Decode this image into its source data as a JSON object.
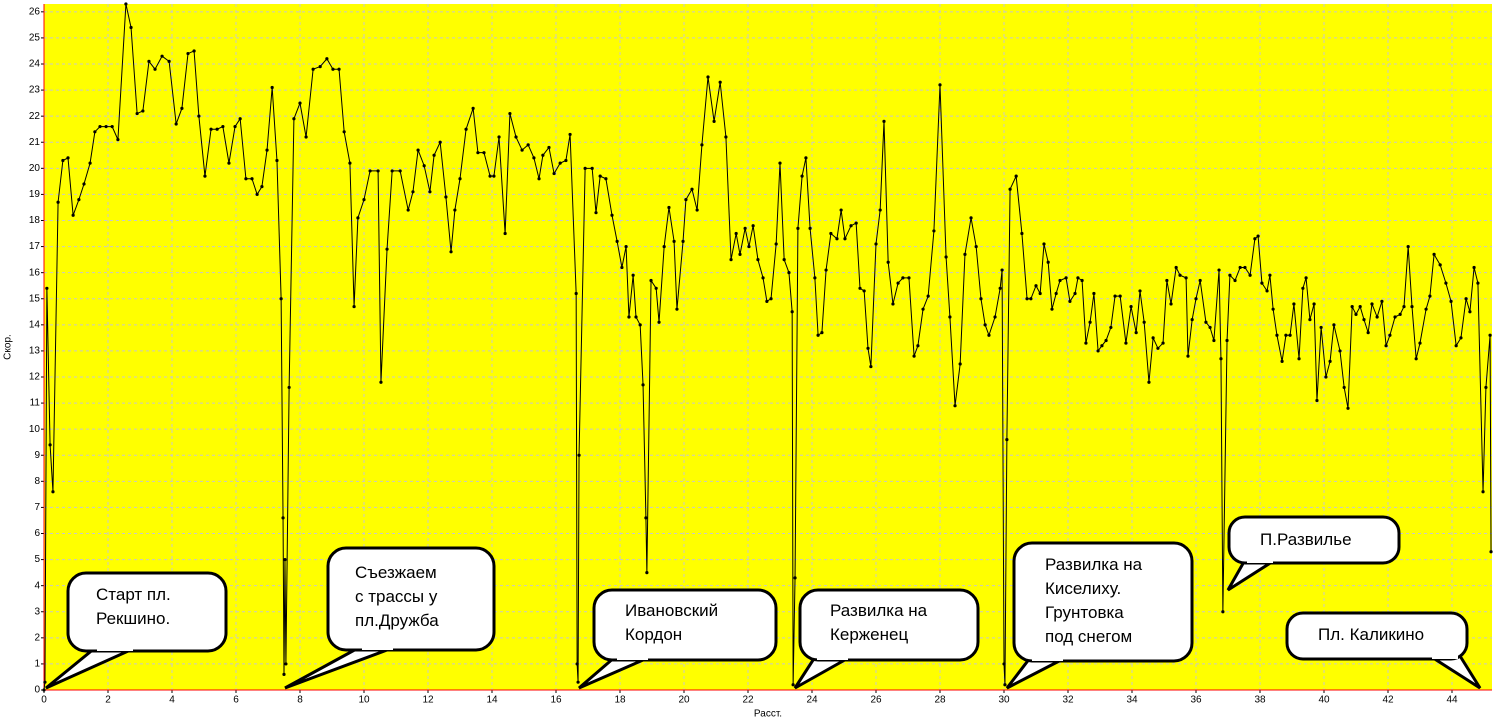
{
  "chart_data": {
    "type": "line",
    "x_label": "Расст.",
    "y_label": "Скор.",
    "color": "#000000",
    "background": "#ffff00",
    "grid": true,
    "xlim": [
      0,
      45.25
    ],
    "ylim": [
      0,
      26.3
    ],
    "xticks": [
      0,
      2,
      4,
      6,
      8,
      10,
      12,
      14,
      16,
      18,
      20,
      22,
      24,
      26,
      28,
      30,
      32,
      34,
      36,
      38,
      40,
      42,
      44
    ],
    "yticks": [
      0,
      1,
      2,
      3,
      4,
      5,
      6,
      7,
      8,
      9,
      10,
      11,
      12,
      13,
      14,
      15,
      16,
      17,
      18,
      19,
      20,
      21,
      22,
      23,
      24,
      25,
      26
    ],
    "series": [
      {
        "name": "Скор.",
        "color": "#000000",
        "x": [
          0,
          0.03,
          0.09,
          0.19,
          0.28,
          0.44,
          0.59,
          0.75,
          0.91,
          1.09,
          1.25,
          1.44,
          1.59,
          1.75,
          1.94,
          2.13,
          2.31,
          2.56,
          2.72,
          2.91,
          3.09,
          3.28,
          3.47,
          3.69,
          3.91,
          4.13,
          4.31,
          4.5,
          4.69,
          4.84,
          5.03,
          5.22,
          5.41,
          5.59,
          5.78,
          5.97,
          6.13,
          6.31,
          6.5,
          6.66,
          6.81,
          6.97,
          7.13,
          7.28,
          7.41,
          7.47,
          7.5,
          7.53,
          7.56,
          7.66,
          7.81,
          8,
          8.19,
          8.41,
          8.63,
          8.84,
          9.03,
          9.22,
          9.38,
          9.56,
          9.69,
          9.81,
          10,
          10.19,
          10.44,
          10.53,
          10.72,
          10.88,
          11.13,
          11.38,
          11.53,
          11.69,
          11.88,
          12.06,
          12.19,
          12.38,
          12.56,
          12.72,
          12.84,
          13,
          13.19,
          13.41,
          13.56,
          13.75,
          13.94,
          14.06,
          14.22,
          14.41,
          14.56,
          14.75,
          14.94,
          15.13,
          15.31,
          15.47,
          15.59,
          15.78,
          15.94,
          16.13,
          16.31,
          16.44,
          16.63,
          16.66,
          16.69,
          16.72,
          16.91,
          17.13,
          17.25,
          17.38,
          17.56,
          17.75,
          17.91,
          18.06,
          18.19,
          18.28,
          18.41,
          18.5,
          18.63,
          18.72,
          18.81,
          18.84,
          18.97,
          19.13,
          19.22,
          19.38,
          19.53,
          19.69,
          19.78,
          19.97,
          20.06,
          20.25,
          20.41,
          20.56,
          20.75,
          20.94,
          21.13,
          21.31,
          21.47,
          21.63,
          21.75,
          21.91,
          22.03,
          22.16,
          22.31,
          22.47,
          22.59,
          22.72,
          22.88,
          23,
          23.13,
          23.28,
          23.38,
          23.41,
          23.47,
          23.56,
          23.69,
          23.81,
          23.94,
          24.09,
          24.19,
          24.31,
          24.44,
          24.59,
          24.78,
          24.91,
          25.03,
          25.22,
          25.38,
          25.5,
          25.63,
          25.75,
          25.84,
          26,
          26.13,
          26.25,
          26.38,
          26.53,
          26.69,
          26.84,
          27.03,
          27.19,
          27.31,
          27.47,
          27.63,
          27.81,
          28,
          28.19,
          28.31,
          28.47,
          28.63,
          28.78,
          28.97,
          29.13,
          29.28,
          29.41,
          29.53,
          29.72,
          29.88,
          29.94,
          30,
          30.03,
          30.09,
          30.19,
          30.38,
          30.56,
          30.72,
          30.84,
          31,
          31.13,
          31.25,
          31.38,
          31.5,
          31.63,
          31.75,
          31.94,
          32.06,
          32.22,
          32.31,
          32.44,
          32.56,
          32.69,
          32.81,
          32.94,
          33.06,
          33.19,
          33.34,
          33.47,
          33.63,
          33.81,
          33.97,
          34.13,
          34.25,
          34.38,
          34.53,
          34.66,
          34.81,
          34.97,
          35.09,
          35.22,
          35.38,
          35.5,
          35.69,
          35.75,
          35.88,
          36,
          36.13,
          36.31,
          36.44,
          36.56,
          36.72,
          36.78,
          36.84,
          36.97,
          37.06,
          37.22,
          37.38,
          37.53,
          37.69,
          37.84,
          37.94,
          38.06,
          38.22,
          38.31,
          38.41,
          38.53,
          38.69,
          38.81,
          38.94,
          39.06,
          39.22,
          39.34,
          39.44,
          39.56,
          39.69,
          39.78,
          39.91,
          40.06,
          40.19,
          40.31,
          40.5,
          40.63,
          40.75,
          40.88,
          41,
          41.13,
          41.25,
          41.38,
          41.5,
          41.66,
          41.81,
          41.94,
          42.06,
          42.22,
          42.38,
          42.5,
          42.63,
          42.75,
          42.88,
          43,
          43.19,
          43.31,
          43.44,
          43.63,
          43.81,
          43.97,
          44.13,
          44.28,
          44.44,
          44.56,
          44.69,
          44.81,
          44.97,
          45.06,
          45.19,
          45.22
        ],
        "values": [
          0,
          0.3,
          15.4,
          9.4,
          7.6,
          18.7,
          20.3,
          20.4,
          18.2,
          18.8,
          19.4,
          20.2,
          21.4,
          21.6,
          21.6,
          21.6,
          21.1,
          26.3,
          25.4,
          22.1,
          22.2,
          24.1,
          23.8,
          24.3,
          24.1,
          21.7,
          22.3,
          24.4,
          24.5,
          22,
          19.7,
          21.5,
          21.5,
          21.6,
          20.2,
          21.6,
          21.9,
          19.6,
          19.6,
          19,
          19.3,
          20.7,
          23.1,
          20.3,
          15,
          6.6,
          0.6,
          5,
          1,
          11.6,
          21.9,
          22.5,
          21.2,
          23.8,
          23.9,
          24.2,
          23.8,
          23.8,
          21.4,
          20.2,
          14.7,
          18.1,
          18.8,
          19.9,
          19.9,
          11.8,
          16.9,
          19.9,
          19.9,
          18.4,
          19.1,
          20.7,
          20.1,
          19.1,
          20.5,
          21,
          18.9,
          16.8,
          18.4,
          19.6,
          21.5,
          22.3,
          20.6,
          20.6,
          19.7,
          19.7,
          21.2,
          17.5,
          22.1,
          21.2,
          20.7,
          20.9,
          20.4,
          19.6,
          20.5,
          20.8,
          19.8,
          20.2,
          20.3,
          21.3,
          15.2,
          1,
          0.3,
          9,
          20,
          20,
          18.3,
          19.7,
          19.6,
          18.2,
          17.2,
          16.2,
          17,
          14.3,
          15.9,
          14.3,
          14,
          11.7,
          6.6,
          4.5,
          15.7,
          15.4,
          14.1,
          17,
          18.5,
          17.2,
          14.6,
          17.2,
          18.8,
          19.2,
          18.4,
          20.9,
          23.5,
          21.8,
          23.3,
          21.2,
          16.5,
          17.5,
          16.7,
          17.7,
          17,
          17.8,
          16.5,
          15.8,
          14.9,
          15,
          17.1,
          20.2,
          16.5,
          16,
          14.5,
          0.2,
          4.3,
          17.7,
          19.7,
          20.4,
          17.7,
          15.8,
          13.6,
          13.7,
          16.1,
          17.5,
          17.3,
          18.4,
          17.3,
          17.8,
          17.9,
          15.4,
          15.3,
          13.1,
          12.4,
          17.1,
          18.4,
          21.8,
          16.4,
          14.8,
          15.6,
          15.8,
          15.8,
          12.8,
          13.2,
          14.6,
          15.1,
          17.6,
          23.2,
          16.6,
          14.3,
          10.9,
          12.5,
          16.7,
          18.1,
          17,
          15,
          14,
          13.6,
          14.3,
          15.4,
          16.1,
          1,
          0.2,
          9.6,
          19.2,
          19.7,
          17.5,
          15,
          15,
          15.5,
          15.2,
          17.1,
          16.4,
          14.6,
          15.2,
          15.7,
          15.8,
          14.9,
          15.2,
          15.8,
          15.7,
          13.3,
          14.1,
          15.2,
          13,
          13.2,
          13.4,
          13.9,
          15.1,
          15.1,
          13.3,
          14.7,
          13.7,
          15.3,
          14.1,
          11.8,
          13.5,
          13.1,
          13.3,
          15.7,
          14.8,
          16.2,
          15.9,
          15.8,
          12.8,
          14.2,
          15,
          15.7,
          14.1,
          13.9,
          13.4,
          16.1,
          12.7,
          3,
          13.4,
          15.9,
          15.7,
          16.2,
          16.2,
          15.9,
          17.3,
          17.4,
          15.6,
          15.3,
          15.9,
          14.6,
          13.6,
          12.6,
          13.6,
          13.6,
          14.8,
          12.7,
          15.4,
          15.8,
          14.2,
          14.8,
          11.1,
          13.9,
          12,
          12.6,
          14,
          13,
          11.6,
          10.8,
          14.7,
          14.4,
          14.7,
          14.2,
          13.7,
          14.8,
          14.3,
          14.9,
          13.2,
          13.6,
          14.3,
          14.4,
          14.7,
          17,
          14.7,
          12.7,
          13.3,
          14.6,
          15.1,
          16.7,
          16.3,
          15.6,
          14.9,
          13.2,
          13.5,
          15,
          14.5,
          16.2,
          15.6,
          7.6,
          11.6,
          13.6,
          5.3
        ]
      }
    ],
    "annotations": [
      {
        "lines": [
          "Старт пл.",
          "Рекшино."
        ]
      },
      {
        "lines": [
          "Съезжаем",
          "с трассы у",
          "пл.Дружба"
        ]
      },
      {
        "lines": [
          "Ивановский",
          "Кордон"
        ]
      },
      {
        "lines": [
          "Развилка  на",
          "Керженец"
        ]
      },
      {
        "lines": [
          "Развилка  на",
          "Киселиху.",
          "Грунтовка",
          "под снегом"
        ]
      },
      {
        "lines": [
          "П.Развилье"
        ]
      },
      {
        "lines": [
          "Пл. Каликино"
        ]
      }
    ]
  }
}
